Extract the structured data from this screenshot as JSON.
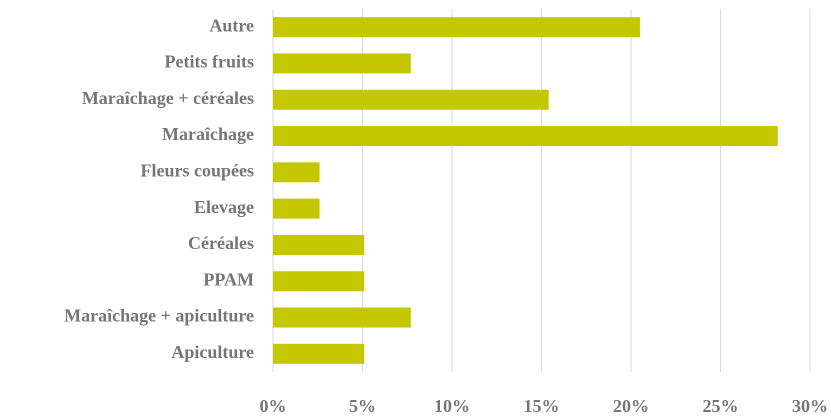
{
  "chart_data": {
    "type": "barh",
    "categories": [
      "Autre",
      "Petits fruits",
      "Maraîchage + céréales",
      "Maraîchage",
      "Fleurs coupées",
      "Elevage",
      "Céréales",
      "PPAM",
      "Maraîchage + apiculture",
      "Apiculture"
    ],
    "values": [
      20.5,
      7.7,
      15.4,
      28.2,
      2.6,
      2.6,
      5.1,
      5.1,
      7.7,
      5.1
    ],
    "color": "#c5c800",
    "xlim": [
      0,
      30
    ],
    "xticks": [
      {
        "value": 0,
        "label": "0%"
      },
      {
        "value": 5,
        "label": "5%"
      },
      {
        "value": 10,
        "label": "10%"
      },
      {
        "value": 15,
        "label": "15%"
      },
      {
        "value": 20,
        "label": "20%"
      },
      {
        "value": 25,
        "label": "25%"
      },
      {
        "value": 30,
        "label": "30%"
      }
    ],
    "grid": true
  }
}
